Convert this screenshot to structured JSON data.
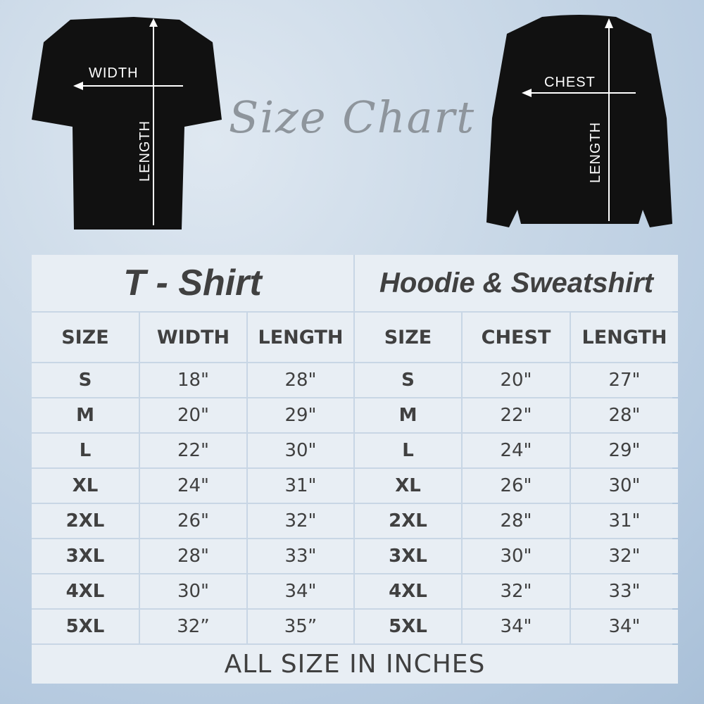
{
  "title": "Size Chart",
  "tshirt_labels": {
    "width": "WIDTH",
    "length": "LENGTH"
  },
  "hoodie_labels": {
    "chest": "CHEST",
    "length": "LENGTH"
  },
  "tshirt": {
    "heading": "T - Shirt",
    "columns": [
      "SIZE",
      "WIDTH",
      "LENGTH"
    ],
    "rows": [
      [
        "S",
        "18\"",
        "28\""
      ],
      [
        "M",
        "20\"",
        "29\""
      ],
      [
        "L",
        "22\"",
        "30\""
      ],
      [
        "XL",
        "24\"",
        "31\""
      ],
      [
        "2XL",
        "26\"",
        "32\""
      ],
      [
        "3XL",
        "28\"",
        "33\""
      ],
      [
        "4XL",
        "30\"",
        "34\""
      ],
      [
        "5XL",
        "32”",
        "35”"
      ]
    ]
  },
  "hoodie": {
    "heading": "Hoodie & Sweatshirt",
    "columns": [
      "SIZE",
      "CHEST",
      "LENGTH"
    ],
    "rows": [
      [
        "S",
        "20\"",
        "27\""
      ],
      [
        "M",
        "22\"",
        "28\""
      ],
      [
        "L",
        "24\"",
        "29\""
      ],
      [
        "XL",
        "26\"",
        "30\""
      ],
      [
        "2XL",
        "28\"",
        "31\""
      ],
      [
        "3XL",
        "30\"",
        "32\""
      ],
      [
        "4XL",
        "32\"",
        "33\""
      ],
      [
        "5XL",
        "34\"",
        "34\""
      ]
    ]
  },
  "footer": "ALL SIZE IN INCHES"
}
